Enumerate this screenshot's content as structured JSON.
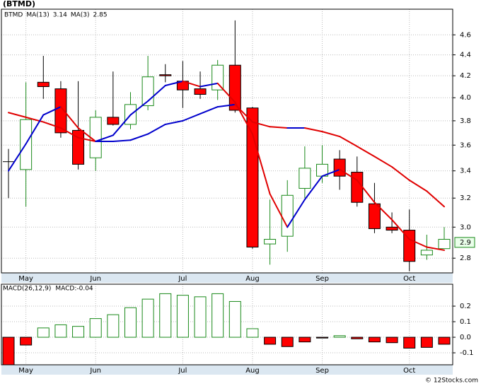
{
  "chart_data": [
    {
      "type": "candlestick",
      "title": "(BTMD)",
      "symbol": "BTMD",
      "log_scale": true,
      "grid": true,
      "categories": [
        null,
        "May",
        null,
        null,
        null,
        "Jun",
        null,
        null,
        null,
        null,
        "Jul",
        null,
        null,
        null,
        "Aug",
        null,
        null,
        null,
        "Sep",
        null,
        null,
        null,
        null,
        "Oct",
        null,
        null
      ],
      "open": [
        3.47,
        3.41,
        4.14,
        4.08,
        3.72,
        3.5,
        3.83,
        3.77,
        3.93,
        4.21,
        4.15,
        4.08,
        4.07,
        4.3,
        3.91,
        2.89,
        2.94,
        3.27,
        3.36,
        3.49,
        3.39,
        3.16,
        3.0,
        2.98,
        2.82,
        2.86
      ],
      "high": [
        3.57,
        4.14,
        4.39,
        4.15,
        4.15,
        3.89,
        4.24,
        4.05,
        4.39,
        4.31,
        4.34,
        4.24,
        4.35,
        4.75,
        3.92,
        3.19,
        3.33,
        3.59,
        3.6,
        3.56,
        3.51,
        3.31,
        3.1,
        3.12,
        2.95,
        3.0
      ],
      "low": [
        3.2,
        3.14,
        3.99,
        3.66,
        3.41,
        3.4,
        3.76,
        3.73,
        3.89,
        4.14,
        3.91,
        3.99,
        3.98,
        3.87,
        2.86,
        2.76,
        2.84,
        3.2,
        3.31,
        3.26,
        3.14,
        2.96,
        2.96,
        2.72,
        2.79,
        2.86
      ],
      "close": [
        3.47,
        3.81,
        4.1,
        3.7,
        3.45,
        3.83,
        3.77,
        3.94,
        4.19,
        4.2,
        4.07,
        4.03,
        4.3,
        3.89,
        2.87,
        2.92,
        3.22,
        3.42,
        3.45,
        3.36,
        3.17,
        2.99,
        2.98,
        2.78,
        2.85,
        2.92
      ],
      "color_up": "#1a8a1a",
      "color_down": "#ff0000",
      "color_flat": "#000000",
      "series": [
        {
          "name": "MA(13)",
          "value": 3.14,
          "color_up": "#0000cc",
          "color_down": "#e00000",
          "values": [
            3.87,
            3.83,
            3.79,
            3.74,
            3.66,
            3.63,
            3.63,
            3.64,
            3.69,
            3.77,
            3.8,
            3.86,
            3.92,
            3.94,
            3.79,
            3.75,
            3.74,
            3.74,
            3.71,
            3.67,
            3.59,
            3.51,
            3.43,
            3.33,
            3.25,
            3.14
          ]
        },
        {
          "name": "MA(3)",
          "value": 2.85,
          "color_up": "#0000cc",
          "color_down": "#e00000",
          "values": [
            3.4,
            3.61,
            3.85,
            3.92,
            3.74,
            3.63,
            3.68,
            3.85,
            3.97,
            4.11,
            4.15,
            4.1,
            4.13,
            3.96,
            3.69,
            3.23,
            3.0,
            3.19,
            3.36,
            3.41,
            3.33,
            3.17,
            3.05,
            2.92,
            2.87,
            2.85
          ]
        }
      ],
      "last_price": 2.9,
      "ylim": [
        2.71,
        4.87
      ],
      "yticks": [
        2.8,
        {
          "value": 3,
          "label": "3.0"
        },
        3.2,
        3.4,
        3.6,
        3.8,
        {
          "value": 4,
          "label": "4.0"
        },
        4.2,
        4.4,
        4.6
      ]
    },
    {
      "type": "bar",
      "title": "MACD(26,12,9)",
      "value_name": "MACD:",
      "value": -0.04,
      "grid": true,
      "categories": [
        null,
        "May",
        null,
        null,
        null,
        "Jun",
        null,
        null,
        null,
        null,
        "Jul",
        null,
        null,
        null,
        "Aug",
        null,
        null,
        null,
        "Sep",
        null,
        null,
        null,
        null,
        "Oct",
        null,
        null
      ],
      "values": [
        -0.18,
        -0.05,
        0.06,
        0.08,
        0.07,
        0.12,
        0.145,
        0.19,
        0.245,
        0.28,
        0.27,
        0.26,
        0.28,
        0.23,
        0.055,
        -0.045,
        -0.06,
        -0.03,
        -0.005,
        0.01,
        -0.01,
        -0.03,
        -0.035,
        -0.07,
        -0.065,
        -0.045
      ],
      "color_pos": "#1a8a1a",
      "color_neg": "#ff0000",
      "ylim": [
        -0.177,
        0.341
      ],
      "yticks": [
        -0.1,
        {
          "value": 0,
          "label": "0.0"
        },
        0.1,
        0.2
      ]
    }
  ],
  "footer": "© 12Stocks.com"
}
